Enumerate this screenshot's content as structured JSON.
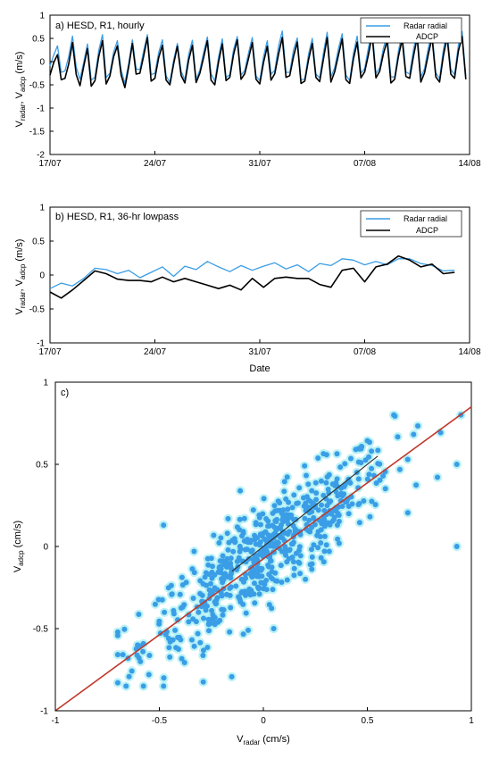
{
  "chart_data": [
    {
      "type": "line",
      "title": "a) HESD, R1, hourly",
      "xlabel": "",
      "ylabel": {
        "base1": "V",
        "sub1": "radar",
        "sep": ", V",
        "sub2": "adcp",
        "unit": " (m/s)"
      },
      "xlim": [
        "2019-07-17",
        "2019-08-14"
      ],
      "xtick_labels": [
        "17/07",
        "24/07",
        "31/07",
        "07/08",
        "14/08"
      ],
      "ylim": [
        -2,
        1
      ],
      "ytick_labels": [
        "-2",
        "-1.5",
        "-1",
        "-0.5",
        "0",
        "0.5",
        "1"
      ],
      "legend_position": "top-right",
      "grid": false,
      "sampling": "hourly",
      "series": [
        {
          "name": "Radar radial",
          "color": "#3a9de6",
          "x_start": "2019-07-17",
          "x_step_days": 0.25,
          "values": [
            -0.09,
            0.14,
            0.34,
            -0.23,
            -0.2,
            0.11,
            0.55,
            -0.12,
            -0.38,
            -0.01,
            0.38,
            -0.4,
            -0.33,
            0.24,
            0.58,
            -0.34,
            -0.25,
            0.21,
            0.45,
            -0.18,
            -0.47,
            -0.04,
            0.47,
            -0.16,
            -0.17,
            0.23,
            0.58,
            -0.28,
            -0.25,
            0.19,
            0.47,
            -0.31,
            -0.45,
            0.03,
            0.39,
            -0.21,
            -0.39,
            0.15,
            0.46,
            -0.38,
            -0.18,
            0.2,
            0.53,
            -0.26,
            -0.42,
            0.1,
            0.49,
            -0.34,
            -0.28,
            0.26,
            0.54,
            -0.29,
            -0.19,
            0.19,
            0.52,
            -0.31,
            -0.41,
            0.11,
            0.45,
            -0.27,
            -0.19,
            0.33,
            0.66,
            -0.23,
            -0.23,
            0.25,
            0.51,
            -0.4,
            -0.37,
            0.16,
            0.5,
            -0.27,
            -0.35,
            0.19,
            0.63,
            -0.33,
            -0.13,
            0.28,
            0.6,
            -0.29,
            -0.41,
            0.18,
            0.55,
            -0.25,
            -0.15,
            0.3,
            0.69,
            -0.26,
            -0.13,
            0.29,
            0.57,
            -0.33,
            -0.33,
            0.23,
            0.61,
            -0.22,
            -0.27,
            0.26,
            0.63,
            -0.34,
            -0.15,
            0.3,
            0.62,
            -0.24,
            -0.37,
            0.25,
            0.66,
            -0.17,
            -0.28,
            0.35,
            0.65,
            -0.31
          ],
          "description": "hourly radar radial velocity, oscillating roughly between -0.5 and 0.9 m/s"
        },
        {
          "name": "ADCP",
          "color": "#000000",
          "x_start": "2019-07-17",
          "x_step_days": 0.25,
          "values": [
            -0.29,
            -0.02,
            0.15,
            -0.39,
            -0.36,
            -0.05,
            0.41,
            -0.28,
            -0.52,
            -0.1,
            0.28,
            -0.53,
            -0.41,
            0.11,
            0.45,
            -0.48,
            -0.31,
            0.11,
            0.34,
            -0.29,
            -0.56,
            -0.12,
            0.39,
            -0.27,
            -0.25,
            0.12,
            0.52,
            -0.42,
            -0.36,
            0.08,
            0.35,
            -0.4,
            -0.5,
            -0.05,
            0.33,
            -0.3,
            -0.46,
            0.03,
            0.35,
            -0.45,
            -0.25,
            0.09,
            0.45,
            -0.4,
            -0.5,
            -0.01,
            0.38,
            -0.41,
            -0.34,
            0.15,
            0.47,
            -0.38,
            -0.26,
            0.07,
            0.41,
            -0.38,
            -0.48,
            -0.02,
            0.33,
            -0.4,
            -0.26,
            0.16,
            0.52,
            -0.34,
            -0.3,
            0.11,
            0.42,
            -0.47,
            -0.42,
            0.04,
            0.39,
            -0.34,
            -0.43,
            0.05,
            0.52,
            -0.44,
            -0.22,
            0.14,
            0.49,
            -0.39,
            -0.47,
            0.06,
            0.42,
            -0.35,
            -0.22,
            0.15,
            0.57,
            -0.35,
            -0.21,
            0.17,
            0.45,
            -0.46,
            -0.38,
            0.11,
            0.48,
            -0.32,
            -0.36,
            0.11,
            0.52,
            -0.44,
            -0.24,
            0.16,
            0.52,
            -0.33,
            -0.44,
            0.12,
            0.53,
            -0.27,
            -0.36,
            0.22,
            0.54,
            -0.38
          ],
          "description": "hourly ADCP velocity, oscillating roughly between -0.6 and 0.75 m/s"
        }
      ]
    },
    {
      "type": "line",
      "title": "b) HESD, R1, 36-hr lowpass",
      "xlabel": "Date",
      "ylabel": {
        "base1": "V",
        "sub1": "radar",
        "sep": ", V",
        "sub2": "adcp",
        "unit": " (m/s)"
      },
      "xlim": [
        "2019-07-17",
        "2019-08-14"
      ],
      "xtick_labels": [
        "17/07",
        "24/07",
        "31/07",
        "07/08",
        "14/08"
      ],
      "ylim": [
        -1,
        1
      ],
      "ytick_labels": [
        "-1",
        "-0.5",
        "0",
        "0.5",
        "1"
      ],
      "legend_position": "top-right",
      "grid": false,
      "series": [
        {
          "name": "Radar radial",
          "color": "#3a9de6",
          "x_days_since_start": [
            0,
            0.75,
            1.5,
            2.25,
            3,
            3.75,
            4.5,
            5.25,
            6,
            6.75,
            7.5,
            8.25,
            9,
            9.75,
            10.5,
            11.25,
            12,
            12.75,
            13.5,
            14.25,
            15,
            15.75,
            16.5,
            17.25,
            18,
            18.75,
            19.5,
            20.25,
            21,
            21.75,
            22.5,
            23.25,
            24,
            24.75,
            25.5,
            26.25,
            27
          ],
          "values": [
            -0.2,
            -0.12,
            -0.16,
            -0.05,
            0.1,
            0.08,
            0.02,
            0.07,
            -0.04,
            0.04,
            0.12,
            -0.02,
            0.13,
            0.08,
            0.2,
            0.12,
            0.05,
            0.14,
            0.07,
            0.13,
            0.18,
            0.09,
            0.15,
            0.05,
            0.17,
            0.14,
            0.24,
            0.22,
            0.15,
            0.2,
            0.15,
            0.24,
            0.24,
            0.17,
            0.14,
            0.06,
            0.07
          ]
        },
        {
          "name": "ADCP",
          "color": "#000000",
          "x_days_since_start": [
            0,
            0.75,
            1.5,
            2.25,
            3,
            3.75,
            4.5,
            5.25,
            6,
            6.75,
            7.5,
            8.25,
            9,
            9.75,
            10.5,
            11.25,
            12,
            12.75,
            13.5,
            14.25,
            15,
            15.75,
            16.5,
            17.25,
            18,
            18.75,
            19.5,
            20.25,
            21,
            21.75,
            22.5,
            23.25,
            24,
            24.75,
            25.5,
            26.25,
            27
          ],
          "values": [
            -0.25,
            -0.34,
            -0.22,
            -0.08,
            0.06,
            0.02,
            -0.06,
            -0.08,
            -0.08,
            -0.1,
            -0.03,
            -0.1,
            -0.05,
            -0.1,
            -0.15,
            -0.2,
            -0.15,
            -0.22,
            -0.05,
            -0.18,
            -0.05,
            -0.03,
            -0.05,
            -0.05,
            -0.14,
            -0.18,
            0.07,
            0.1,
            -0.1,
            0.12,
            0.16,
            0.28,
            0.22,
            0.12,
            0.16,
            0.02,
            0.04
          ]
        }
      ]
    },
    {
      "type": "scatter",
      "title": "c)",
      "xlabel": {
        "base": "V",
        "sub": "radar",
        "unit": " (cm/s)"
      },
      "ylabel": {
        "base": "V",
        "sub": "adcp",
        "unit": " (cm/s)"
      },
      "xlim": [
        -1,
        1
      ],
      "ylim": [
        -1,
        1
      ],
      "xtick_labels": [
        "-1",
        "-0.5",
        "0",
        "0.5",
        "1"
      ],
      "ytick_labels": [
        "-1",
        "-0.5",
        "0",
        "0.5",
        "1"
      ],
      "grid": false,
      "legend_position": "none",
      "point_color": "#3a9de6",
      "point_halo_color": "#aef0f5",
      "fit_line": {
        "color": "#c0392b",
        "x": [
          -1,
          1
        ],
        "y": [
          -1,
          0.85
        ]
      },
      "point_count": 620,
      "points_description": "cloud of ~620 points clustered along the fit line, V_adcp ≈ V_radar with spread ~0.15; x range about -0.7 to 0.95, y range about -0.85 to 0.8",
      "highlighted_points": [
        [
          -0.48,
          0.13
        ],
        [
          -0.48,
          -0.85
        ],
        [
          0.93,
          0.5
        ],
        [
          0.93,
          0.0
        ],
        [
          0.05,
          -0.5
        ]
      ],
      "diagonal_segment": {
        "color": "#333333",
        "x": [
          -0.15,
          0.55
        ],
        "y": [
          -0.15,
          0.55
        ]
      }
    }
  ]
}
